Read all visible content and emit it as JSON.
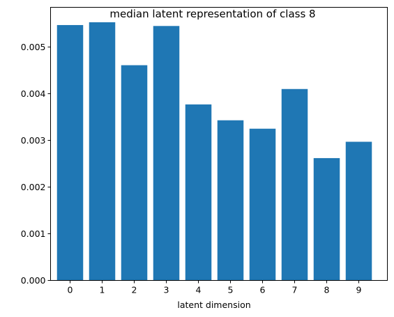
{
  "chart_data": {
    "type": "bar",
    "title": "median latent representation of class 8",
    "xlabel": "latent dimension",
    "ylabel": "",
    "categories": [
      "0",
      "1",
      "2",
      "3",
      "4",
      "5",
      "6",
      "7",
      "8",
      "9"
    ],
    "values": [
      0.00547,
      0.00553,
      0.00461,
      0.00545,
      0.00377,
      0.00343,
      0.00325,
      0.0041,
      0.00262,
      0.00297
    ],
    "ylim": [
      0,
      0.00585
    ],
    "yticks": [
      "0.000",
      "0.001",
      "0.002",
      "0.003",
      "0.004",
      "0.005"
    ],
    "grid": false,
    "bar_color": "#1f77b4"
  }
}
